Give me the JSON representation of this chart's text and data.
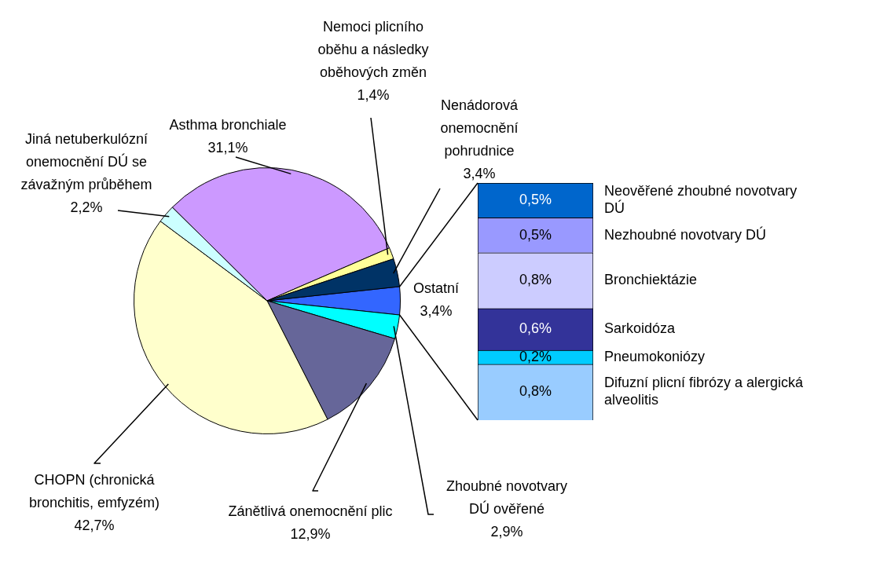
{
  "chart_data": [
    {
      "type": "pie",
      "categories": [
        "Ostatní",
        "Zhoubné novotvary DÚ ověřené",
        "Zánětlivá onemocnění plic",
        "CHOPN (chronická bronchitis, emfyzém)",
        "Jiná netuberkulózní onemocnění DÚ se závažným průběhem",
        "Asthma bronchiale",
        "Nemoci plicního oběhu a následky oběhových změn",
        "Nenádorová onemocnění pohrudnice"
      ],
      "values": [
        3.4,
        2.9,
        12.9,
        42.7,
        2.2,
        31.1,
        1.4,
        3.4
      ],
      "value_labels": [
        "3,4%",
        "2,9%",
        "12,9%",
        "42,7%",
        "2,2%",
        "31,1%",
        "1,4%",
        "3,4%"
      ],
      "colors": [
        "#3366ff",
        "#00ffff",
        "#666699",
        "#ffffcc",
        "#ccffff",
        "#cc99ff",
        "#ffff99",
        "#003366"
      ]
    },
    {
      "type": "bar",
      "stacked": true,
      "categories": [
        null
      ],
      "series": [
        {
          "name": "Difuzní plicní fibrózy a alergická alveolitis",
          "color": "#99ccff",
          "values": [
            0.8
          ],
          "value_labels": [
            "0,8%"
          ]
        },
        {
          "name": "Pneumokoniózy",
          "color": "#00ccff",
          "values": [
            0.2
          ],
          "value_labels": [
            "0,2%"
          ]
        },
        {
          "name": "Sarkoidóza",
          "color": "#333399",
          "values": [
            0.6
          ],
          "value_labels": [
            "0,6%"
          ]
        },
        {
          "name": "Bronchiektázie",
          "color": "#ccccff",
          "values": [
            0.8
          ],
          "value_labels": [
            "0,8%"
          ]
        },
        {
          "name": "Nezhoubné novotvary DÚ",
          "color": "#9999ff",
          "values": [
            0.5
          ],
          "value_labels": [
            "0,5%"
          ]
        },
        {
          "name": "Neověřené zhoubné novotvary DÚ",
          "color": "#0066cc",
          "values": [
            0.5
          ],
          "value_labels": [
            "0,5%"
          ]
        }
      ]
    }
  ]
}
